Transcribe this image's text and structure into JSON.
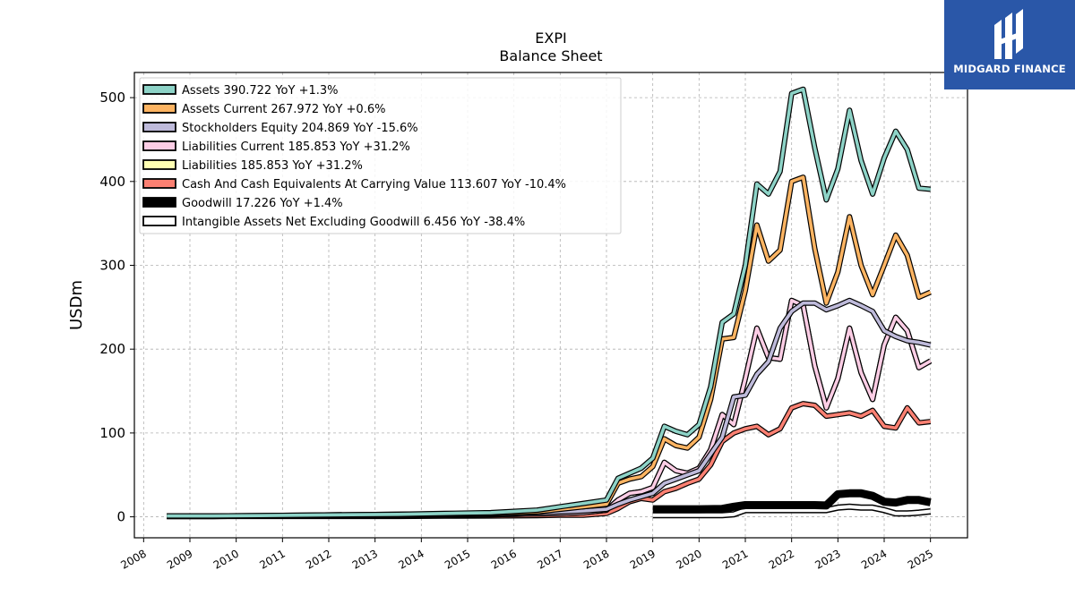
{
  "brand": {
    "name": "MIDGARD FINANCE",
    "color": "#2a57a8"
  },
  "chart_data": {
    "type": "line",
    "title": "EXPI",
    "subtitle": "Balance  Sheet",
    "xlabel": "",
    "ylabel": "USDm",
    "xlim": [
      2007.8,
      2025.8
    ],
    "ylim": [
      -25,
      530
    ],
    "yticks": [
      0,
      100,
      200,
      300,
      400,
      500
    ],
    "xticks": [
      "2008",
      "2009",
      "2010",
      "2011",
      "2012",
      "2013",
      "2014",
      "2015",
      "2016",
      "2017",
      "2018",
      "2019",
      "2020",
      "2021",
      "2022",
      "2023",
      "2024",
      "2025"
    ],
    "grid": true,
    "legend_position": "top-left",
    "series": [
      {
        "name": "Assets",
        "legend_label": "Assets  390.722 YoY +1.3%",
        "color": "#8dd3c7",
        "x": [
          2008.5,
          2009.5,
          2010.5,
          2011.5,
          2012.5,
          2013.5,
          2014.5,
          2015.5,
          2016.5,
          2017,
          2017.5,
          2018,
          2018.25,
          2018.5,
          2018.75,
          2019,
          2019.25,
          2019.5,
          2019.75,
          2020,
          2020.25,
          2020.5,
          2020.75,
          2021,
          2021.25,
          2021.5,
          2021.75,
          2022,
          2022.25,
          2022.5,
          2022.75,
          2023,
          2023.25,
          2023.5,
          2023.75,
          2024,
          2024.25,
          2024.5,
          2024.75,
          2025
        ],
        "y": [
          1,
          1,
          1.5,
          2,
          2.5,
          3,
          4,
          5,
          8,
          12,
          16,
          20,
          46,
          52,
          58,
          70,
          108,
          102,
          98,
          110,
          155,
          232,
          242,
          300,
          397,
          385,
          412,
          505,
          510,
          440,
          378,
          415,
          485,
          425,
          385,
          428,
          460,
          438,
          392,
          390.722
        ]
      },
      {
        "name": "Assets Current",
        "legend_label": "Assets Current  267.972 YoY +0.6%",
        "color": "#fdb462",
        "x": [
          2008.5,
          2009.5,
          2010.5,
          2011.5,
          2012.5,
          2013.5,
          2014.5,
          2015.5,
          2016.5,
          2017,
          2017.5,
          2018,
          2018.25,
          2018.5,
          2018.75,
          2019,
          2019.25,
          2019.5,
          2019.75,
          2020,
          2020.25,
          2020.5,
          2020.75,
          2021,
          2021.25,
          2021.5,
          2021.75,
          2022,
          2022.25,
          2022.5,
          2022.75,
          2023,
          2023.25,
          2023.5,
          2023.75,
          2024,
          2024.25,
          2024.5,
          2024.75,
          2025
        ],
        "y": [
          1,
          1,
          1.5,
          2,
          2.5,
          3,
          3.5,
          4,
          6,
          9,
          12,
          15,
          40,
          45,
          48,
          60,
          93,
          85,
          82,
          95,
          140,
          212,
          214,
          270,
          348,
          305,
          318,
          400,
          405,
          320,
          255,
          292,
          358,
          300,
          265,
          300,
          336,
          312,
          262,
          267.972
        ]
      },
      {
        "name": "Stockholders Equity",
        "legend_label": "Stockholders Equity  204.869 YoY -15.6%",
        "color": "#bebada",
        "x": [
          2008.5,
          2009.5,
          2010.5,
          2011.5,
          2012.5,
          2013.5,
          2014.5,
          2015.5,
          2016.5,
          2017,
          2017.5,
          2018,
          2018.25,
          2018.5,
          2018.75,
          2019,
          2019.25,
          2019.5,
          2019.75,
          2020,
          2020.25,
          2020.5,
          2020.75,
          2021,
          2021.25,
          2021.5,
          2021.75,
          2022,
          2022.25,
          2022.5,
          2022.75,
          2023,
          2023.25,
          2023.5,
          2023.75,
          2024,
          2024.25,
          2024.5,
          2024.75,
          2025
        ],
        "y": [
          0.5,
          0.5,
          1,
          1.5,
          2,
          2.5,
          3,
          3.5,
          5,
          6,
          7,
          9,
          15,
          20,
          24,
          28,
          40,
          45,
          50,
          55,
          75,
          95,
          143,
          145,
          170,
          185,
          225,
          245,
          255,
          255,
          247,
          252,
          258,
          252,
          245,
          222,
          215,
          210,
          208,
          204.869
        ]
      },
      {
        "name": "Liabilities Current",
        "legend_label": "Liabilities Current  185.853 YoY +31.2%",
        "color": "#fccde5",
        "x": [
          2008.5,
          2009.5,
          2010.5,
          2011.5,
          2012.5,
          2013.5,
          2014.5,
          2015.5,
          2016.5,
          2017,
          2017.5,
          2018,
          2018.25,
          2018.5,
          2018.75,
          2019,
          2019.25,
          2019.5,
          2019.75,
          2020,
          2020.25,
          2020.5,
          2020.75,
          2021,
          2021.25,
          2021.5,
          2021.75,
          2022,
          2022.25,
          2022.5,
          2022.75,
          2023,
          2023.25,
          2023.5,
          2023.75,
          2024,
          2024.25,
          2024.5,
          2024.75,
          2025
        ],
        "y": [
          0.5,
          0.5,
          0.8,
          1,
          1.2,
          1.5,
          2,
          2.5,
          3.5,
          4,
          5,
          8,
          20,
          28,
          30,
          35,
          65,
          55,
          52,
          58,
          80,
          122,
          110,
          165,
          225,
          190,
          188,
          258,
          252,
          180,
          130,
          165,
          225,
          172,
          140,
          205,
          238,
          222,
          178,
          185.853
        ]
      },
      {
        "name": "Liabilities",
        "legend_label": "Liabilities  185.853 YoY +31.2%",
        "color": "#ffffb3",
        "x": [
          2008.5,
          2009.5,
          2010.5,
          2011.5,
          2012.5,
          2013.5,
          2014.5,
          2015.5,
          2016.5,
          2017,
          2017.5,
          2018,
          2018.25,
          2018.5,
          2018.75,
          2019,
          2019.25,
          2019.5,
          2019.75,
          2020,
          2020.25,
          2020.5,
          2020.75,
          2021,
          2021.25,
          2021.5,
          2021.75,
          2022,
          2022.25,
          2022.5,
          2022.75,
          2023,
          2023.25,
          2023.5,
          2023.75,
          2024,
          2024.25,
          2024.5,
          2024.75,
          2025
        ],
        "y": [
          0.5,
          0.5,
          0.8,
          1,
          1.2,
          1.5,
          2,
          2.5,
          3.5,
          4,
          5,
          8,
          20,
          28,
          30,
          35,
          65,
          55,
          52,
          58,
          80,
          122,
          110,
          165,
          225,
          190,
          188,
          258,
          252,
          180,
          130,
          165,
          225,
          172,
          140,
          205,
          238,
          222,
          178,
          185.853
        ]
      },
      {
        "name": "Cash And Cash Equivalents At Carrying Value",
        "legend_label": "Cash And Cash Equivalents At Carrying Value  113.607 YoY -10.4%",
        "color": "#fb8072",
        "x": [
          2008.5,
          2009.5,
          2010.5,
          2011.5,
          2012.5,
          2013.5,
          2014.5,
          2015.5,
          2016.5,
          2017,
          2017.5,
          2018,
          2018.25,
          2018.5,
          2018.75,
          2019,
          2019.25,
          2019.5,
          2019.75,
          2020,
          2020.25,
          2020.5,
          2020.75,
          2021,
          2021.25,
          2021.5,
          2021.75,
          2022,
          2022.25,
          2022.5,
          2022.75,
          2023,
          2023.25,
          2023.5,
          2023.75,
          2024,
          2024.25,
          2024.5,
          2024.75,
          2025
        ],
        "y": [
          0.5,
          0.5,
          0.5,
          0.5,
          0.5,
          0.5,
          0.8,
          1,
          1.5,
          2,
          2,
          4,
          10,
          18,
          22,
          20,
          30,
          34,
          40,
          45,
          62,
          90,
          100,
          105,
          108,
          98,
          105,
          130,
          135,
          133,
          120,
          122,
          124,
          120,
          127,
          108,
          106,
          130,
          112,
          113.607
        ]
      },
      {
        "name": "Goodwill",
        "legend_label": "Goodwill  17.226 YoY +1.4%",
        "color": "#000000",
        "x": [
          2019,
          2019.5,
          2020,
          2020.5,
          2020.75,
          2021,
          2021.5,
          2022,
          2022.5,
          2022.75,
          2023,
          2023.25,
          2023.5,
          2023.75,
          2024,
          2024.25,
          2024.5,
          2024.75,
          2025
        ],
        "y": [
          9,
          9,
          9,
          9.5,
          12,
          14,
          14,
          14,
          14,
          13.5,
          27,
          28,
          28,
          25,
          18,
          17,
          20,
          20,
          17.226
        ]
      },
      {
        "name": "Intangible Assets Net Excluding Goodwill",
        "legend_label": "Intangible Assets Net Excluding Goodwill  6.456 YoY -38.4%",
        "color": "#ffffff",
        "x": [
          2019,
          2019.5,
          2020,
          2020.5,
          2020.75,
          2021,
          2021.5,
          2022,
          2022.5,
          2022.75,
          2023,
          2023.25,
          2023.5,
          2023.75,
          2024,
          2024.25,
          2024.5,
          2024.75,
          2025
        ],
        "y": [
          2,
          2,
          2,
          2,
          3,
          8,
          8,
          8,
          8,
          8,
          11,
          12,
          11,
          11,
          8,
          4,
          4,
          5,
          6.456
        ]
      }
    ]
  }
}
